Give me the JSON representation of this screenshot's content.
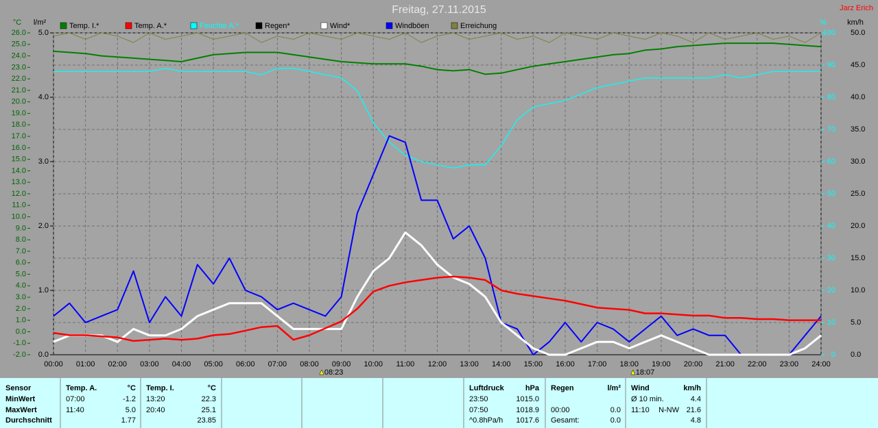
{
  "chart_data": {
    "type": "line",
    "title": "Freitag, 27.11.2015",
    "author": "Jarz Erich",
    "units": {
      "y": "°C",
      "y4": "l/m²",
      "y2": "%",
      "y3": "km/h"
    },
    "xlim": [
      0,
      24
    ],
    "xticks": [
      {
        "value": 0,
        "label": "00:00"
      },
      {
        "value": 1,
        "label": "01:00"
      },
      {
        "value": 2,
        "label": "02:00"
      },
      {
        "value": 3,
        "label": "03:00"
      },
      {
        "value": 4,
        "label": "04:00"
      },
      {
        "value": 5,
        "label": "05:00"
      },
      {
        "value": 6,
        "label": "06:00"
      },
      {
        "value": 7,
        "label": "07:00"
      },
      {
        "value": 8,
        "label": "08:00"
      },
      {
        "value": 9,
        "label": "09:00"
      },
      {
        "value": 10,
        "label": "10:00"
      },
      {
        "value": 11,
        "label": "11:00"
      },
      {
        "value": 12,
        "label": "12:00"
      },
      {
        "value": 13,
        "label": "13:00"
      },
      {
        "value": 14,
        "label": "14:00"
      },
      {
        "value": 15,
        "label": "15:00"
      },
      {
        "value": 16,
        "label": "16:00"
      },
      {
        "value": 17,
        "label": "17:00"
      },
      {
        "value": 18,
        "label": "18:00"
      },
      {
        "value": 19,
        "label": "19:00"
      },
      {
        "value": 20,
        "label": "20:00"
      },
      {
        "value": 21,
        "label": "21:00"
      },
      {
        "value": 22,
        "label": "22:00"
      },
      {
        "value": 23,
        "label": "23:00"
      },
      {
        "value": 24,
        "label": "24:00"
      }
    ],
    "ylim": [
      -2,
      26
    ],
    "yticks": [
      {
        "value": -2,
        "label": "-2.0"
      },
      {
        "value": -1,
        "label": "-1.0"
      },
      {
        "value": 0,
        "label": "0.0"
      },
      {
        "value": 1,
        "label": "1.0"
      },
      {
        "value": 2,
        "label": "2.0"
      },
      {
        "value": 3,
        "label": "3.0"
      },
      {
        "value": 4,
        "label": "4.0"
      },
      {
        "value": 5,
        "label": "5.0"
      },
      {
        "value": 6,
        "label": "6.0"
      },
      {
        "value": 7,
        "label": "7.0"
      },
      {
        "value": 8,
        "label": "8.0"
      },
      {
        "value": 9,
        "label": "9.0"
      },
      {
        "value": 10,
        "label": "10.0"
      },
      {
        "value": 11,
        "label": "11.0"
      },
      {
        "value": 12,
        "label": "12.0"
      },
      {
        "value": 13,
        "label": "13.0"
      },
      {
        "value": 14,
        "label": "14.0"
      },
      {
        "value": 15,
        "label": "15.0"
      },
      {
        "value": 16,
        "label": "16.0"
      },
      {
        "value": 17,
        "label": "17.0"
      },
      {
        "value": 18,
        "label": "18.0"
      },
      {
        "value": 19,
        "label": "19.0"
      },
      {
        "value": 20,
        "label": "20.0"
      },
      {
        "value": 21,
        "label": "21.0"
      },
      {
        "value": 22,
        "label": "22.0"
      },
      {
        "value": 23,
        "label": "23.0"
      },
      {
        "value": 24,
        "label": "24.0"
      },
      {
        "value": 25,
        "label": "25.0"
      },
      {
        "value": 26,
        "label": "26.0"
      }
    ],
    "y4lim": [
      0,
      5
    ],
    "y4ticks": [
      {
        "value": 0,
        "label": "0.0"
      },
      {
        "value": 1,
        "label": "1.0"
      },
      {
        "value": 2,
        "label": "2.0"
      },
      {
        "value": 3,
        "label": "3.0"
      },
      {
        "value": 4,
        "label": "4.0"
      },
      {
        "value": 5,
        "label": "5.0"
      }
    ],
    "y2lim": [
      0,
      100
    ],
    "y2ticks": [
      0,
      10,
      20,
      30,
      40,
      50,
      60,
      70,
      80,
      90,
      100
    ],
    "y3lim": [
      0,
      50
    ],
    "y3ticks": [
      {
        "value": 0,
        "label": "0.0"
      },
      {
        "value": 5,
        "label": "5.0"
      },
      {
        "value": 10,
        "label": "10.0"
      },
      {
        "value": 15,
        "label": "15.0"
      },
      {
        "value": 20,
        "label": "20.0"
      },
      {
        "value": 25,
        "label": "25.0"
      },
      {
        "value": 30,
        "label": "30.0"
      },
      {
        "value": 35,
        "label": "35.0"
      },
      {
        "value": 40,
        "label": "40.0"
      },
      {
        "value": 45,
        "label": "45.0"
      },
      {
        "value": 50,
        "label": "50.0"
      }
    ],
    "grid": true,
    "x": [
      0,
      0.5,
      1,
      1.5,
      2,
      2.5,
      3,
      3.5,
      4,
      4.5,
      5,
      5.5,
      6,
      6.5,
      7,
      7.5,
      8,
      8.5,
      9,
      9.5,
      10,
      10.5,
      11,
      11.5,
      12,
      12.5,
      13,
      13.5,
      14,
      14.5,
      15,
      15.5,
      16,
      16.5,
      17,
      17.5,
      18,
      18.5,
      19,
      19.5,
      20,
      20.5,
      21,
      21.5,
      22,
      22.5,
      23,
      23.5,
      24
    ],
    "series": [
      {
        "name": "Temp. I.*",
        "color": "#008000",
        "axis": "y",
        "values": [
          24.4,
          24.3,
          24.2,
          24.0,
          23.9,
          23.8,
          23.7,
          23.6,
          23.5,
          23.8,
          24.1,
          24.2,
          24.3,
          24.3,
          24.3,
          24.1,
          23.9,
          23.7,
          23.5,
          23.4,
          23.3,
          23.3,
          23.3,
          23.1,
          22.8,
          22.7,
          22.8,
          22.4,
          22.5,
          22.8,
          23.1,
          23.3,
          23.5,
          23.7,
          23.9,
          24.1,
          24.2,
          24.5,
          24.6,
          24.8,
          24.9,
          25.0,
          25.1,
          25.1,
          25.1,
          25.1,
          25.0,
          24.9,
          24.8
        ]
      },
      {
        "name": "Temp. A.*",
        "color": "#ff0000",
        "axis": "y",
        "values": [
          -0.1,
          -0.3,
          -0.3,
          -0.4,
          -0.5,
          -0.8,
          -0.7,
          -0.6,
          -0.7,
          -0.6,
          -0.3,
          -0.2,
          0.1,
          0.4,
          0.5,
          -0.7,
          -0.3,
          0.3,
          0.9,
          2.0,
          3.5,
          4.0,
          4.3,
          4.5,
          4.7,
          4.8,
          4.7,
          4.5,
          3.6,
          3.3,
          3.1,
          2.9,
          2.7,
          2.4,
          2.1,
          2.0,
          1.9,
          1.6,
          1.6,
          1.5,
          1.4,
          1.4,
          1.2,
          1.2,
          1.1,
          1.1,
          1.0,
          1.0,
          1.0
        ]
      },
      {
        "name": "Feuchte A.*",
        "color": "#00ffff",
        "axis": "y2",
        "values": [
          88,
          88,
          88,
          88,
          88,
          88,
          88,
          89,
          88,
          88,
          88,
          88,
          88,
          87,
          89,
          89,
          88,
          87,
          86,
          82,
          72,
          66,
          62,
          60,
          59,
          58,
          59,
          59,
          65,
          73,
          77,
          78,
          79,
          81,
          83,
          84,
          85,
          86,
          86,
          86,
          86,
          86,
          87,
          86,
          87,
          88,
          88,
          88,
          88
        ]
      },
      {
        "name": "Regen*",
        "color": "#000000",
        "axis": "y4",
        "values": [
          0,
          0,
          0,
          0,
          0,
          0,
          0,
          0,
          0,
          0,
          0,
          0,
          0,
          0,
          0,
          0,
          0,
          0,
          0,
          0,
          0,
          0,
          0,
          0,
          0,
          0,
          0,
          0,
          0,
          0,
          0,
          0,
          0,
          0,
          0,
          0,
          0,
          0,
          0,
          0,
          0,
          0,
          0,
          0,
          0,
          0,
          0,
          0,
          0
        ]
      },
      {
        "name": "Wind*",
        "color": "#ffffff",
        "axis": "y3",
        "values": [
          2,
          3,
          3,
          3,
          2,
          4,
          3,
          3,
          4,
          6,
          7,
          8,
          8,
          8,
          6,
          4,
          4,
          4,
          4,
          9,
          13,
          15,
          19,
          17,
          14,
          12,
          11,
          9,
          5,
          3,
          1,
          0,
          0,
          1,
          2,
          2,
          1,
          2,
          3,
          2,
          1,
          0,
          0,
          0,
          0,
          0,
          0,
          1,
          3
        ]
      },
      {
        "name": "Windböen",
        "color": "#0000ff",
        "axis": "y3",
        "values": [
          6,
          8,
          5,
          6,
          7,
          13,
          5,
          9,
          6,
          14,
          11,
          15,
          10,
          9,
          7,
          8,
          7,
          6,
          9,
          22,
          28,
          34,
          33,
          24,
          24,
          18,
          20,
          15,
          5,
          4,
          0,
          2,
          5,
          2,
          5,
          4,
          2,
          4,
          6,
          3,
          4,
          3,
          3,
          0,
          0,
          0,
          0,
          3,
          6
        ]
      },
      {
        "name": "Erreichung",
        "color": "#808040",
        "axis": "y2",
        "values": [
          99,
          100,
          98,
          100,
          99,
          97,
          100,
          98,
          99,
          100,
          98,
          99,
          100,
          97,
          99,
          98,
          100,
          99,
          98,
          100,
          99,
          98,
          100,
          97,
          99,
          100,
          98,
          99,
          100,
          98,
          99,
          97,
          100,
          99,
          98,
          100,
          99,
          98,
          100,
          99,
          97,
          100,
          98,
          99,
          100,
          98,
          99,
          97,
          100
        ]
      }
    ],
    "annotations": [
      {
        "x": 8.383,
        "label": "08:23"
      },
      {
        "x": 18.117,
        "label": "18:07"
      }
    ]
  },
  "table": {
    "sensor": {
      "title": "Sensor",
      "rows": [
        "MinWert",
        "MaxWert",
        "Durchschnitt"
      ]
    },
    "groups": [
      {
        "title": "Temp. A.",
        "unit": "°C",
        "rows": [
          [
            "07:00",
            "-1.2"
          ],
          [
            "11:40",
            "5.0"
          ],
          [
            "1.77"
          ]
        ]
      },
      {
        "title": "Temp. I.",
        "unit": "°C",
        "rows": [
          [
            "13:20",
            "22.3"
          ],
          [
            "20:40",
            "25.1"
          ],
          [
            "23.85"
          ]
        ]
      },
      {
        "title": "Luftdruck",
        "unit": "hPa",
        "rows": [
          [
            "23:50",
            "1015.0"
          ],
          [
            "07:50",
            "1018.9"
          ],
          [
            "^0.8hPa/h",
            "1017.6"
          ]
        ]
      },
      {
        "title": "Regen",
        "unit": "l/m²",
        "rows": [
          null,
          [
            "00:00",
            "0.0"
          ],
          [
            "Gesamt:",
            "0.0"
          ]
        ]
      },
      {
        "title": "Wind",
        "unit": "km/h",
        "rows": [
          [
            "Ø 10 min.",
            "4.4"
          ],
          [
            "11:10",
            "N-NW",
            "21.6"
          ],
          [
            "4.8"
          ]
        ]
      }
    ]
  }
}
